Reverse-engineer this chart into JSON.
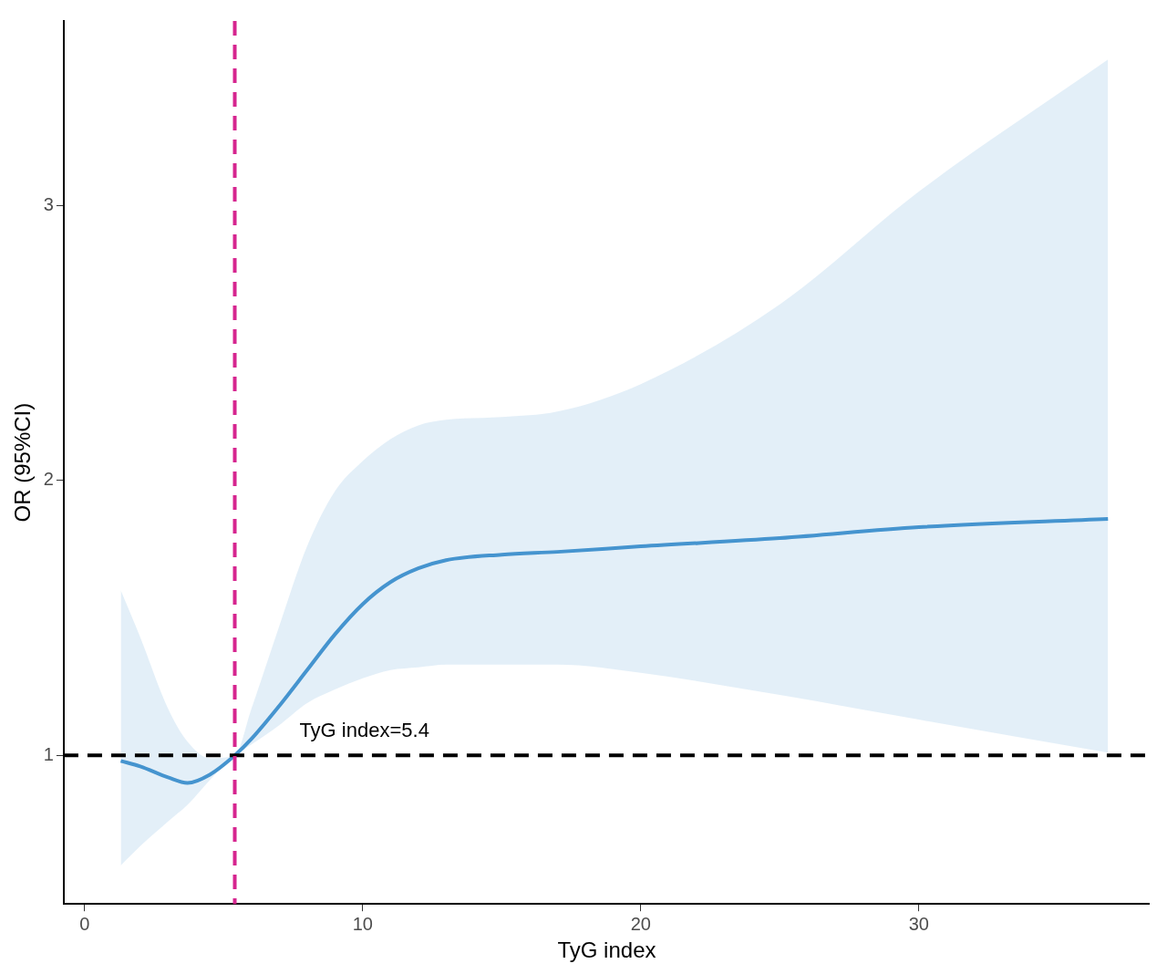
{
  "chart_data": {
    "type": "line",
    "xlabel": "TyG index",
    "ylabel": "OR (95%CI)",
    "x": [
      1.3,
      2,
      3,
      3.7,
      4.5,
      5.4,
      6,
      7,
      8,
      9,
      10,
      11,
      12,
      13,
      15,
      17,
      20,
      25,
      30,
      36.8
    ],
    "series": [
      {
        "color": "#4694cf",
        "values": [
          0.98,
          0.96,
          0.92,
          0.9,
          0.93,
          1.0,
          1.06,
          1.18,
          1.31,
          1.44,
          1.55,
          1.63,
          1.68,
          1.71,
          1.73,
          1.74,
          1.76,
          1.79,
          1.83,
          1.86
        ],
        "lower": [
          0.6,
          0.67,
          0.76,
          0.82,
          0.91,
          1.0,
          1.04,
          1.11,
          1.19,
          1.24,
          1.28,
          1.31,
          1.32,
          1.33,
          1.33,
          1.33,
          1.3,
          1.22,
          1.13,
          1.01
        ],
        "upper": [
          1.6,
          1.43,
          1.17,
          1.05,
          0.99,
          1.0,
          1.17,
          1.47,
          1.76,
          1.96,
          2.07,
          2.15,
          2.2,
          2.22,
          2.23,
          2.25,
          2.35,
          2.64,
          3.05,
          3.53
        ]
      }
    ],
    "xlim": [
      -0.75,
      38.3
    ],
    "ylim": [
      0.46,
      3.67
    ],
    "xticks": [
      0,
      10,
      20,
      30
    ],
    "yticks": [
      1,
      2,
      3
    ],
    "ref_lines": [
      {
        "axis": "y",
        "value": 1,
        "color": "#000000",
        "line_style": "dashed"
      },
      {
        "axis": "x",
        "value": 5.4,
        "color": "#d6258f",
        "line_style": "dashed"
      }
    ],
    "annotations": [
      "TyG index=5.4"
    ],
    "grid": false,
    "legend": false
  }
}
